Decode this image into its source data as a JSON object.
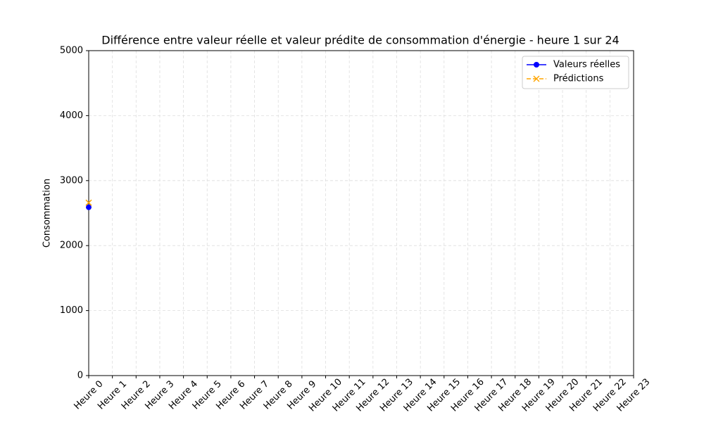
{
  "chart_data": {
    "type": "line",
    "title": "Différence entre valeur réelle et valeur prédite de consommation d'énergie - heure 1 sur 24",
    "y_label": "Consommation",
    "categories": [
      "Heure 0",
      "Heure 1",
      "Heure 2",
      "Heure 3",
      "Heure 4",
      "Heure 5",
      "Heure 6",
      "Heure 7",
      "Heure 8",
      "Heure 9",
      "Heure 10",
      "Heure 11",
      "Heure 12",
      "Heure 13",
      "Heure 14",
      "Heure 15",
      "Heure 16",
      "Heure 17",
      "Heure 18",
      "Heure 19",
      "Heure 20",
      "Heure 21",
      "Heure 22",
      "Heure 23"
    ],
    "series": [
      {
        "name": "Valeurs réelles",
        "color": "#0000ff",
        "marker": "o",
        "linestyle": "solid",
        "values": [
          2590,
          null,
          null,
          null,
          null,
          null,
          null,
          null,
          null,
          null,
          null,
          null,
          null,
          null,
          null,
          null,
          null,
          null,
          null,
          null,
          null,
          null,
          null,
          null
        ]
      },
      {
        "name": "Prédictions",
        "color": "#ffa500",
        "marker": "x",
        "linestyle": "dashed",
        "values": [
          2660,
          null,
          null,
          null,
          null,
          null,
          null,
          null,
          null,
          null,
          null,
          null,
          null,
          null,
          null,
          null,
          null,
          null,
          null,
          null,
          null,
          null,
          null,
          null
        ]
      }
    ],
    "ylim": [
      0,
      5000
    ],
    "yticks": [
      0,
      1000,
      2000,
      3000,
      4000,
      5000
    ],
    "grid": true,
    "legend": "upper right"
  }
}
